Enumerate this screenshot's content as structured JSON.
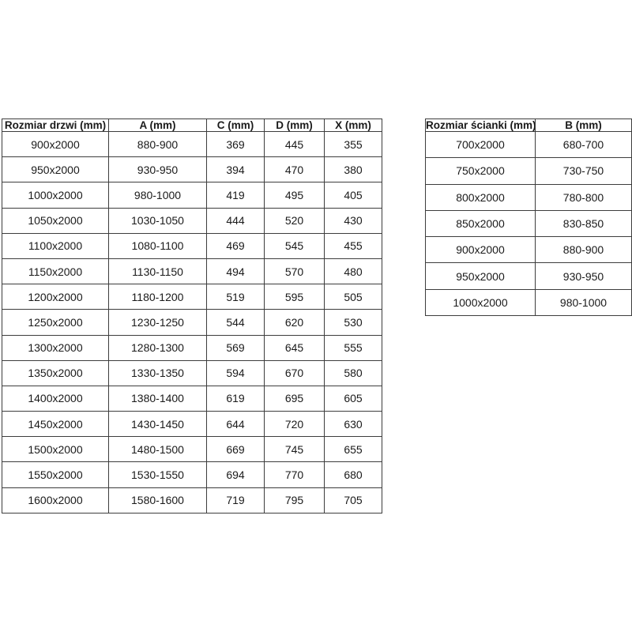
{
  "colors": {
    "background": "#ffffff",
    "border": "#3d3d3d",
    "text": "#1a1a1a"
  },
  "chart_data": [
    {
      "type": "table",
      "name": "door-sizes",
      "columns": [
        "Rozmiar drzwi (mm)",
        "A (mm)",
        "C (mm)",
        "D (mm)",
        "X (mm)"
      ],
      "rows": [
        [
          "900x2000",
          "880-900",
          "369",
          "445",
          "355"
        ],
        [
          "950x2000",
          "930-950",
          "394",
          "470",
          "380"
        ],
        [
          "1000x2000",
          "980-1000",
          "419",
          "495",
          "405"
        ],
        [
          "1050x2000",
          "1030-1050",
          "444",
          "520",
          "430"
        ],
        [
          "1100x2000",
          "1080-1100",
          "469",
          "545",
          "455"
        ],
        [
          "1150x2000",
          "1130-1150",
          "494",
          "570",
          "480"
        ],
        [
          "1200x2000",
          "1180-1200",
          "519",
          "595",
          "505"
        ],
        [
          "1250x2000",
          "1230-1250",
          "544",
          "620",
          "530"
        ],
        [
          "1300x2000",
          "1280-1300",
          "569",
          "645",
          "555"
        ],
        [
          "1350x2000",
          "1330-1350",
          "594",
          "670",
          "580"
        ],
        [
          "1400x2000",
          "1380-1400",
          "619",
          "695",
          "605"
        ],
        [
          "1450x2000",
          "1430-1450",
          "644",
          "720",
          "630"
        ],
        [
          "1500x2000",
          "1480-1500",
          "669",
          "745",
          "655"
        ],
        [
          "1550x2000",
          "1530-1550",
          "694",
          "770",
          "680"
        ],
        [
          "1600x2000",
          "1580-1600",
          "719",
          "795",
          "705"
        ]
      ]
    },
    {
      "type": "table",
      "name": "wall-sizes",
      "columns": [
        "Rozmiar ścianki (mm)",
        "B (mm)"
      ],
      "rows": [
        [
          "700x2000",
          "680-700"
        ],
        [
          "750x2000",
          "730-750"
        ],
        [
          "800x2000",
          "780-800"
        ],
        [
          "850x2000",
          "830-850"
        ],
        [
          "900x2000",
          "880-900"
        ],
        [
          "950x2000",
          "930-950"
        ],
        [
          "1000x2000",
          "980-1000"
        ]
      ]
    }
  ]
}
